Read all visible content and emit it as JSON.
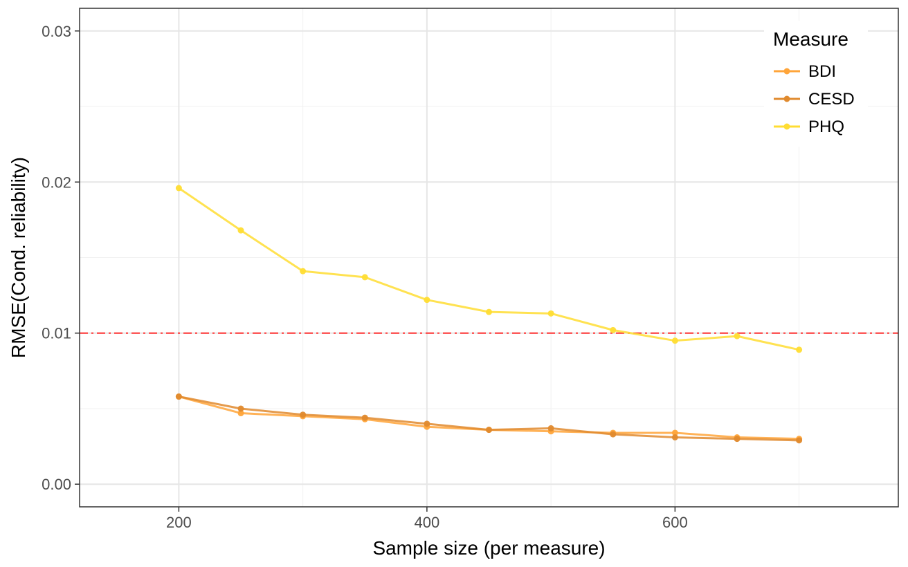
{
  "chart_data": {
    "type": "line",
    "xlabel": "Sample size (per measure)",
    "ylabel": "RMSE(Cond. reliability)",
    "xlim": [
      120,
      780
    ],
    "ylim": [
      -0.0015,
      0.0315
    ],
    "x_ticks": [
      200,
      400,
      600
    ],
    "x_tick_labels": [
      "200",
      "400",
      "600"
    ],
    "x_minor_ticks": [
      300,
      500,
      700
    ],
    "y_ticks": [
      0,
      0.01,
      0.02,
      0.03
    ],
    "y_tick_labels": [
      "0.00",
      "0.01",
      "0.02",
      "0.03"
    ],
    "y_minor_ticks": [
      0.005,
      0.015,
      0.025
    ],
    "grid": true,
    "legend": {
      "title": "Measure",
      "position": "top-right"
    },
    "reference_line": {
      "y": 0.01,
      "color": "#ff3333",
      "style": "dash-dot"
    },
    "x": [
      200,
      250,
      300,
      350,
      400,
      450,
      500,
      550,
      600,
      650,
      700
    ],
    "series": [
      {
        "name": "BDI",
        "color": "#ffa53a",
        "values": [
          0.0058,
          0.0047,
          0.0045,
          0.0043,
          0.0038,
          0.0036,
          0.0035,
          0.0034,
          0.0034,
          0.0031,
          0.003
        ]
      },
      {
        "name": "CESD",
        "color": "#e08a2e",
        "values": [
          0.0058,
          0.005,
          0.0046,
          0.0044,
          0.004,
          0.0036,
          0.0037,
          0.0033,
          0.0031,
          0.003,
          0.0029
        ]
      },
      {
        "name": "PHQ",
        "color": "#ffdd33",
        "values": [
          0.0196,
          0.0168,
          0.0141,
          0.0137,
          0.0122,
          0.0114,
          0.0113,
          0.0102,
          0.0095,
          0.0098,
          0.0089
        ]
      }
    ]
  }
}
